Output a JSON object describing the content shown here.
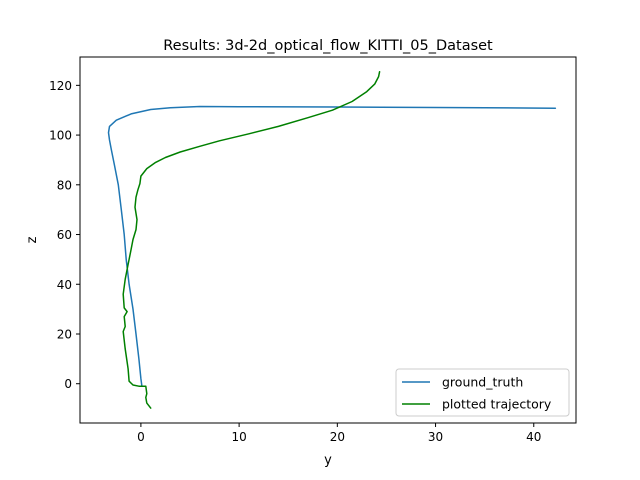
{
  "chart_data": {
    "type": "line",
    "title": "Results: 3d-2d_optical_flow_KITTI_05_Dataset",
    "xlabel": "y",
    "ylabel": "z",
    "xlim": [
      -6.2,
      44.3
    ],
    "ylim": [
      -15.8,
      131.4
    ],
    "xticks": [
      0,
      10,
      20,
      30,
      40
    ],
    "yticks": [
      0,
      20,
      40,
      60,
      80,
      100,
      120
    ],
    "grid": false,
    "legend_position": "lower-right",
    "series": [
      {
        "name": "ground_truth",
        "color": "#1f77b4",
        "points": [
          [
            0.1,
            -1.0
          ],
          [
            0.0,
            2.0
          ],
          [
            -0.2,
            10.0
          ],
          [
            -0.5,
            20.0
          ],
          [
            -0.8,
            30.0
          ],
          [
            -1.2,
            40.0
          ],
          [
            -1.5,
            50.0
          ],
          [
            -1.7,
            60.0
          ],
          [
            -2.0,
            70.0
          ],
          [
            -2.3,
            80.0
          ],
          [
            -2.7,
            88.0
          ],
          [
            -3.0,
            94.0
          ],
          [
            -3.2,
            98.0
          ],
          [
            -3.3,
            101.0
          ],
          [
            -3.2,
            103.5
          ],
          [
            -2.5,
            106.0
          ],
          [
            -1.0,
            108.5
          ],
          [
            1.0,
            110.3
          ],
          [
            3.0,
            111.0
          ],
          [
            6.0,
            111.5
          ],
          [
            10.0,
            111.4
          ],
          [
            20.0,
            111.3
          ],
          [
            30.0,
            111.1
          ],
          [
            42.2,
            110.8
          ]
        ]
      },
      {
        "name": "plotted trajectory",
        "color": "#008000",
        "points": [
          [
            1.0,
            -9.8
          ],
          [
            0.6,
            -7.8
          ],
          [
            0.5,
            -5.5
          ],
          [
            0.6,
            -4.0
          ],
          [
            0.5,
            -1.0
          ],
          [
            -0.2,
            -1.0
          ],
          [
            -0.8,
            -0.5
          ],
          [
            -1.2,
            1.0
          ],
          [
            -1.3,
            6.0
          ],
          [
            -1.6,
            14.0
          ],
          [
            -1.8,
            21.0
          ],
          [
            -1.6,
            23.0
          ],
          [
            -1.7,
            27.0
          ],
          [
            -1.4,
            29.0
          ],
          [
            -1.7,
            30.5
          ],
          [
            -1.8,
            36.0
          ],
          [
            -1.6,
            42.0
          ],
          [
            -1.3,
            48.0
          ],
          [
            -1.0,
            54.0
          ],
          [
            -0.8,
            58.0
          ],
          [
            -0.5,
            62.0
          ],
          [
            -0.4,
            66.0
          ],
          [
            -0.6,
            71.0
          ],
          [
            -0.5,
            75.0
          ],
          [
            -0.3,
            78.0
          ],
          [
            -0.1,
            80.5
          ],
          [
            0.0,
            83.5
          ],
          [
            0.6,
            86.5
          ],
          [
            1.5,
            89.0
          ],
          [
            2.5,
            91.0
          ],
          [
            4.0,
            93.2
          ],
          [
            6.0,
            95.5
          ],
          [
            8.0,
            97.7
          ],
          [
            11.0,
            100.5
          ],
          [
            14.0,
            103.5
          ],
          [
            17.0,
            107.0
          ],
          [
            19.5,
            110.0
          ],
          [
            21.5,
            113.5
          ],
          [
            23.0,
            117.5
          ],
          [
            23.8,
            120.5
          ],
          [
            24.2,
            123.5
          ],
          [
            24.3,
            125.5
          ]
        ]
      }
    ]
  }
}
